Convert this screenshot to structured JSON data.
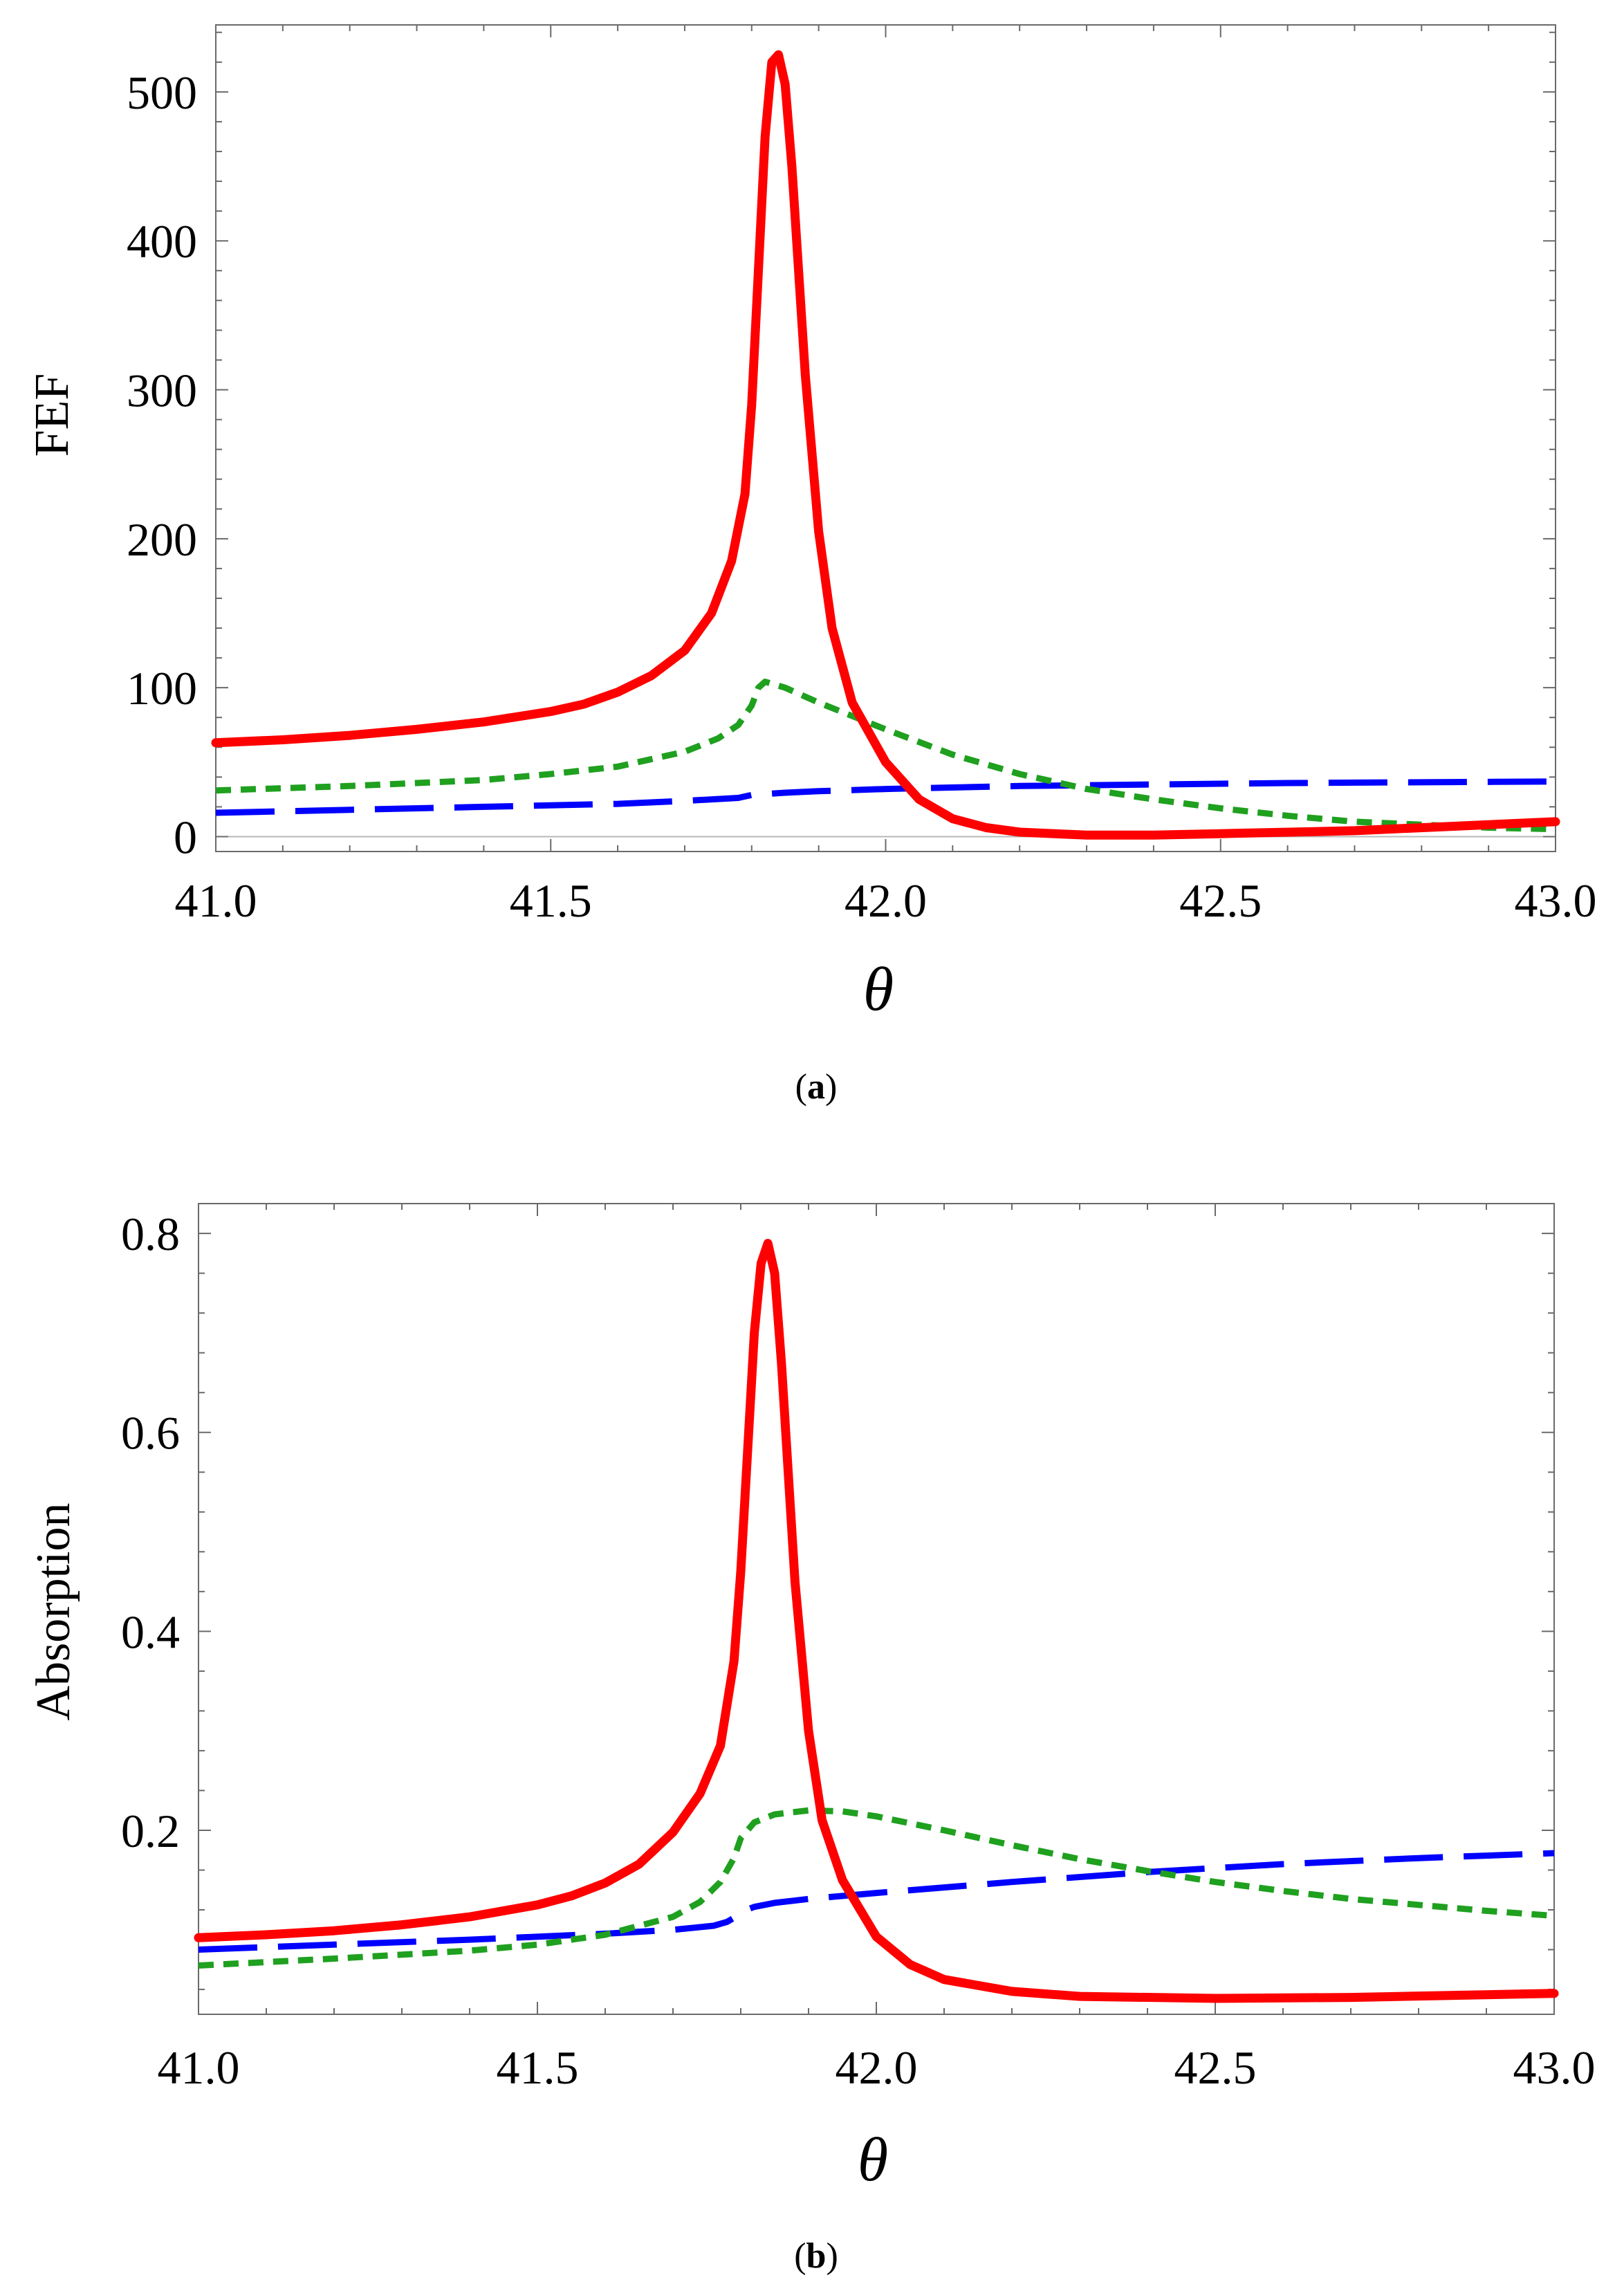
{
  "chart_data": [
    {
      "id": "a",
      "type": "line",
      "caption_letter": "a",
      "caption_open": "(",
      "caption_close": ")",
      "xlabel": "θ",
      "ylabel": "FEF",
      "xlim": [
        41.0,
        43.0
      ],
      "ylim": [
        -10,
        545
      ],
      "x_ticks": [
        41.0,
        41.5,
        42.0,
        42.5,
        43.0
      ],
      "x_tick_labels": [
        "41.0",
        "41.5",
        "42.0",
        "42.5",
        "43.0"
      ],
      "y_ticks": [
        0,
        100,
        200,
        300,
        400,
        500
      ],
      "y_tick_labels": [
        "0",
        "100",
        "200",
        "300",
        "400",
        "500"
      ],
      "series": [
        {
          "name": "red-solid",
          "color": "#ff0000",
          "style": "solid",
          "x": [
            41.0,
            41.1,
            41.2,
            41.3,
            41.4,
            41.5,
            41.55,
            41.6,
            41.65,
            41.7,
            41.74,
            41.77,
            41.79,
            41.8,
            41.81,
            41.82,
            41.83,
            41.84,
            41.85,
            41.86,
            41.87,
            41.88,
            41.9,
            41.92,
            41.95,
            42.0,
            42.05,
            42.1,
            42.15,
            42.2,
            42.3,
            42.4,
            42.5,
            42.7,
            42.9,
            43.0
          ],
          "y": [
            63,
            65,
            68,
            72,
            77,
            84,
            89,
            97,
            108,
            125,
            150,
            185,
            230,
            290,
            380,
            470,
            520,
            525,
            505,
            450,
            380,
            310,
            205,
            140,
            90,
            50,
            25,
            12,
            6,
            3,
            1,
            1,
            2,
            4,
            8,
            10
          ]
        },
        {
          "name": "green-dotted",
          "color": "#1fa01f",
          "style": "dotted",
          "x": [
            41.0,
            41.2,
            41.4,
            41.5,
            41.6,
            41.7,
            41.75,
            41.78,
            41.8,
            41.81,
            41.82,
            41.85,
            41.9,
            42.0,
            42.1,
            42.2,
            42.3,
            42.4,
            42.5,
            42.6,
            42.7,
            42.8,
            42.9,
            43.0
          ],
          "y": [
            31,
            34,
            38,
            42,
            47,
            57,
            66,
            75,
            88,
            100,
            104,
            100,
            90,
            72,
            55,
            42,
            32,
            25,
            19,
            14,
            10,
            8,
            6,
            5
          ]
        },
        {
          "name": "blue-dashed",
          "color": "#0000ff",
          "style": "dashed",
          "x": [
            41.0,
            41.2,
            41.4,
            41.6,
            41.7,
            41.78,
            41.8,
            41.85,
            41.9,
            42.0,
            42.2,
            42.4,
            42.6,
            42.8,
            43.0
          ],
          "y": [
            16,
            18,
            20,
            22,
            24,
            26,
            28,
            29.5,
            30.5,
            32,
            34,
            35,
            36,
            36.5,
            37
          ]
        }
      ]
    },
    {
      "id": "b",
      "type": "line",
      "caption_letter": "b",
      "caption_open": "(",
      "caption_close": ")",
      "xlabel": "θ",
      "ylabel": "Absorption",
      "xlim": [
        41.0,
        43.0
      ],
      "ylim": [
        0.015,
        0.83
      ],
      "x_ticks": [
        41.0,
        41.5,
        42.0,
        42.5,
        43.0
      ],
      "x_tick_labels": [
        "41.0",
        "41.5",
        "42.0",
        "42.5",
        "43.0"
      ],
      "y_ticks": [
        0.2,
        0.4,
        0.6,
        0.8
      ],
      "y_tick_labels": [
        "0.2",
        "0.4",
        "0.6",
        "0.8"
      ],
      "series": [
        {
          "name": "red-solid",
          "color": "#ff0000",
          "style": "solid",
          "x": [
            41.0,
            41.1,
            41.2,
            41.3,
            41.4,
            41.5,
            41.55,
            41.6,
            41.65,
            41.7,
            41.74,
            41.77,
            41.79,
            41.8,
            41.81,
            41.82,
            41.83,
            41.84,
            41.85,
            41.86,
            41.87,
            41.88,
            41.9,
            41.92,
            41.95,
            42.0,
            42.05,
            42.1,
            42.2,
            42.3,
            42.5,
            42.7,
            43.0
          ],
          "y": [
            0.092,
            0.095,
            0.099,
            0.105,
            0.113,
            0.125,
            0.134,
            0.147,
            0.166,
            0.198,
            0.237,
            0.285,
            0.37,
            0.46,
            0.58,
            0.7,
            0.77,
            0.79,
            0.76,
            0.67,
            0.56,
            0.45,
            0.3,
            0.21,
            0.15,
            0.093,
            0.065,
            0.05,
            0.038,
            0.033,
            0.031,
            0.032,
            0.036
          ]
        },
        {
          "name": "green-dotted",
          "color": "#1fa01f",
          "style": "dotted",
          "x": [
            41.0,
            41.2,
            41.4,
            41.5,
            41.6,
            41.7,
            41.74,
            41.77,
            41.79,
            41.8,
            41.82,
            41.85,
            41.9,
            41.95,
            42.0,
            42.1,
            42.2,
            42.3,
            42.4,
            42.5,
            42.6,
            42.7,
            42.8,
            42.9,
            43.0
          ],
          "y": [
            0.064,
            0.071,
            0.079,
            0.085,
            0.095,
            0.113,
            0.128,
            0.148,
            0.172,
            0.192,
            0.208,
            0.216,
            0.22,
            0.219,
            0.214,
            0.2,
            0.185,
            0.171,
            0.159,
            0.148,
            0.139,
            0.131,
            0.125,
            0.119,
            0.114
          ]
        },
        {
          "name": "blue-dashed",
          "color": "#0000ff",
          "style": "dashed",
          "x": [
            41.0,
            41.2,
            41.4,
            41.6,
            41.7,
            41.76,
            41.78,
            41.79,
            41.8,
            41.82,
            41.85,
            41.9,
            42.0,
            42.2,
            42.4,
            42.6,
            42.8,
            43.0
          ],
          "y": [
            0.08,
            0.085,
            0.09,
            0.096,
            0.1,
            0.104,
            0.108,
            0.112,
            0.118,
            0.123,
            0.127,
            0.131,
            0.137,
            0.148,
            0.158,
            0.166,
            0.172,
            0.177
          ]
        }
      ]
    }
  ]
}
